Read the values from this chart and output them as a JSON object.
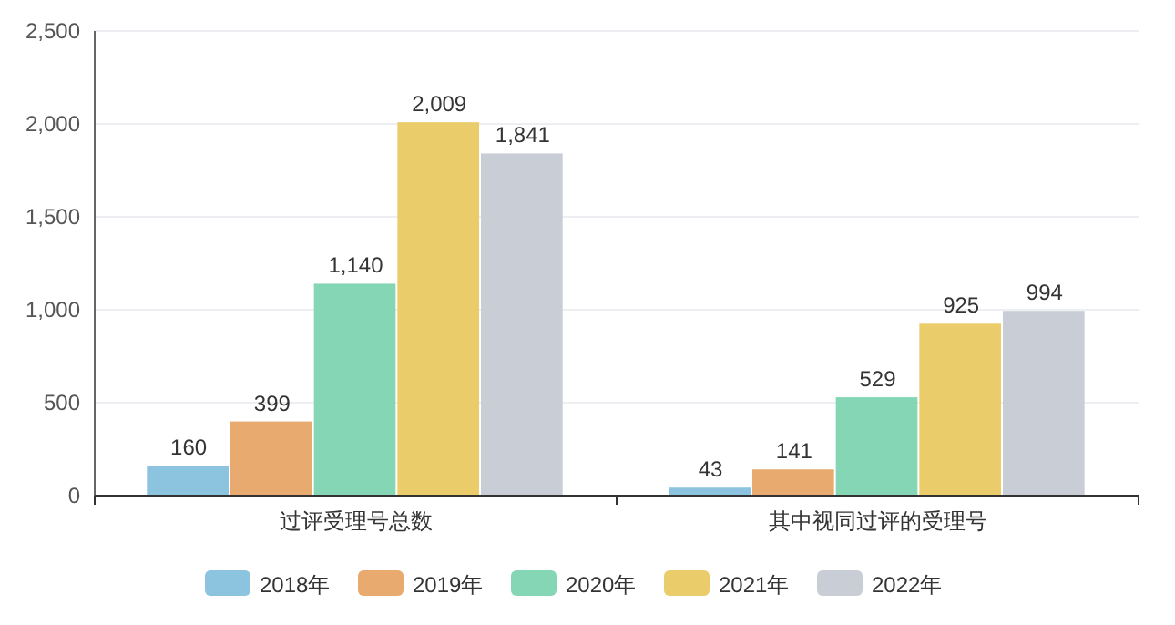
{
  "chart_data": {
    "type": "bar",
    "categories": [
      "过评受理号总数",
      "其中视同过评的受理号"
    ],
    "series": [
      {
        "name": "2018年",
        "color": "#8cc4df",
        "values": [
          160,
          43
        ],
        "value_labels": [
          "160",
          "43"
        ]
      },
      {
        "name": "2019年",
        "color": "#e8aa6f",
        "values": [
          399,
          141
        ],
        "value_labels": [
          "399",
          "141"
        ]
      },
      {
        "name": "2020年",
        "color": "#84d6b4",
        "values": [
          1140,
          529
        ],
        "value_labels": [
          "1,140",
          "529"
        ]
      },
      {
        "name": "2021年",
        "color": "#ebcc6b",
        "values": [
          2009,
          925
        ],
        "value_labels": [
          "2,009",
          "925"
        ]
      },
      {
        "name": "2022年",
        "color": "#c9cdd6",
        "values": [
          1841,
          994
        ],
        "value_labels": [
          "1,841",
          "994"
        ]
      }
    ],
    "ylim": [
      0,
      2500
    ],
    "yticks": [
      {
        "value": 0,
        "label": "0"
      },
      {
        "value": 500,
        "label": "500"
      },
      {
        "value": 1000,
        "label": "1,000"
      },
      {
        "value": 1500,
        "label": "1,500"
      },
      {
        "value": 2000,
        "label": "2,000"
      },
      {
        "value": 2500,
        "label": "2,500"
      }
    ],
    "grid": "y",
    "legend": "bottom"
  }
}
